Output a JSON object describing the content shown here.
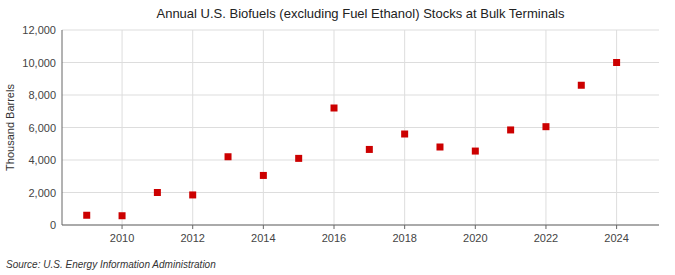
{
  "chart_data": {
    "type": "scatter",
    "title": "Annual U.S. Biofuels (excluding Fuel Ethanol) Stocks at Bulk Terminals",
    "ylabel": "Thousand Barrels",
    "annotation": "Source: U.S. Energy Information Administration",
    "x": [
      2009,
      2010,
      2011,
      2012,
      2013,
      2014,
      2015,
      2016,
      2017,
      2018,
      2019,
      2020,
      2021,
      2022,
      2023,
      2024
    ],
    "values": [
      600,
      570,
      2000,
      1850,
      4200,
      3050,
      4100,
      7200,
      4650,
      5600,
      4800,
      4550,
      5850,
      6050,
      8600,
      10000
    ],
    "color": "#cc0000",
    "marker": "square",
    "grid": true,
    "xlim": [
      2008.3,
      2025.2
    ],
    "xticks": [
      2010,
      2012,
      2014,
      2016,
      2018,
      2020,
      2022,
      2024
    ],
    "ylim": [
      0,
      12000
    ],
    "yticks": [
      0,
      {
        "value": 2000,
        "label": "2,000"
      },
      {
        "value": 4000,
        "label": "4,000"
      },
      {
        "value": 6000,
        "label": "6,000"
      },
      {
        "value": 8000,
        "label": "8,000"
      },
      {
        "value": 10000,
        "label": "10,000"
      },
      {
        "value": 12000,
        "label": "12,000"
      }
    ]
  }
}
